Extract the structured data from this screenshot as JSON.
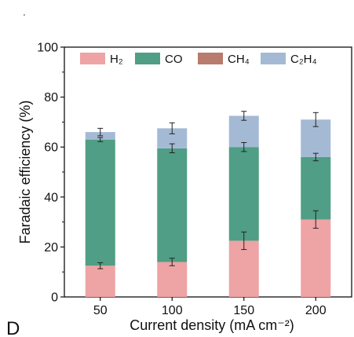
{
  "panel_label": "D",
  "colors": {
    "H2": "#eea3a5",
    "CO": "#4f9e85",
    "CH4": "#b87b6d",
    "C2H4": "#a4bad4"
  },
  "chart_data": {
    "type": "bar",
    "stacked": true,
    "categories": [
      "50",
      "100",
      "150",
      "200"
    ],
    "xlabel": "Current density (mA cm⁻²)",
    "ylabel": "Faradaic efficiency (%)",
    "ylim": [
      0,
      100
    ],
    "yticks": [
      "0",
      "20",
      "40",
      "60",
      "80",
      "100"
    ],
    "legend_position": "top",
    "grid": false,
    "series": [
      {
        "key": "H2",
        "name": "H₂",
        "values": [
          12.5,
          14,
          22.5,
          31
        ],
        "errors": [
          1.2,
          1.5,
          3.5,
          3.5
        ]
      },
      {
        "key": "CO",
        "name": "CO",
        "values": [
          50.5,
          45.5,
          37.5,
          25
        ],
        "errors": [
          0.8,
          1.8,
          1.8,
          1.5
        ]
      },
      {
        "key": "CH4",
        "name": "CH₄",
        "values": [
          0,
          0,
          0,
          0
        ],
        "errors": [
          0,
          0,
          0,
          0
        ]
      },
      {
        "key": "C2H4",
        "name": "C₂H₄",
        "values": [
          3,
          8,
          12.5,
          15
        ],
        "errors": [
          1.5,
          2.2,
          1.8,
          2.8
        ]
      }
    ]
  }
}
